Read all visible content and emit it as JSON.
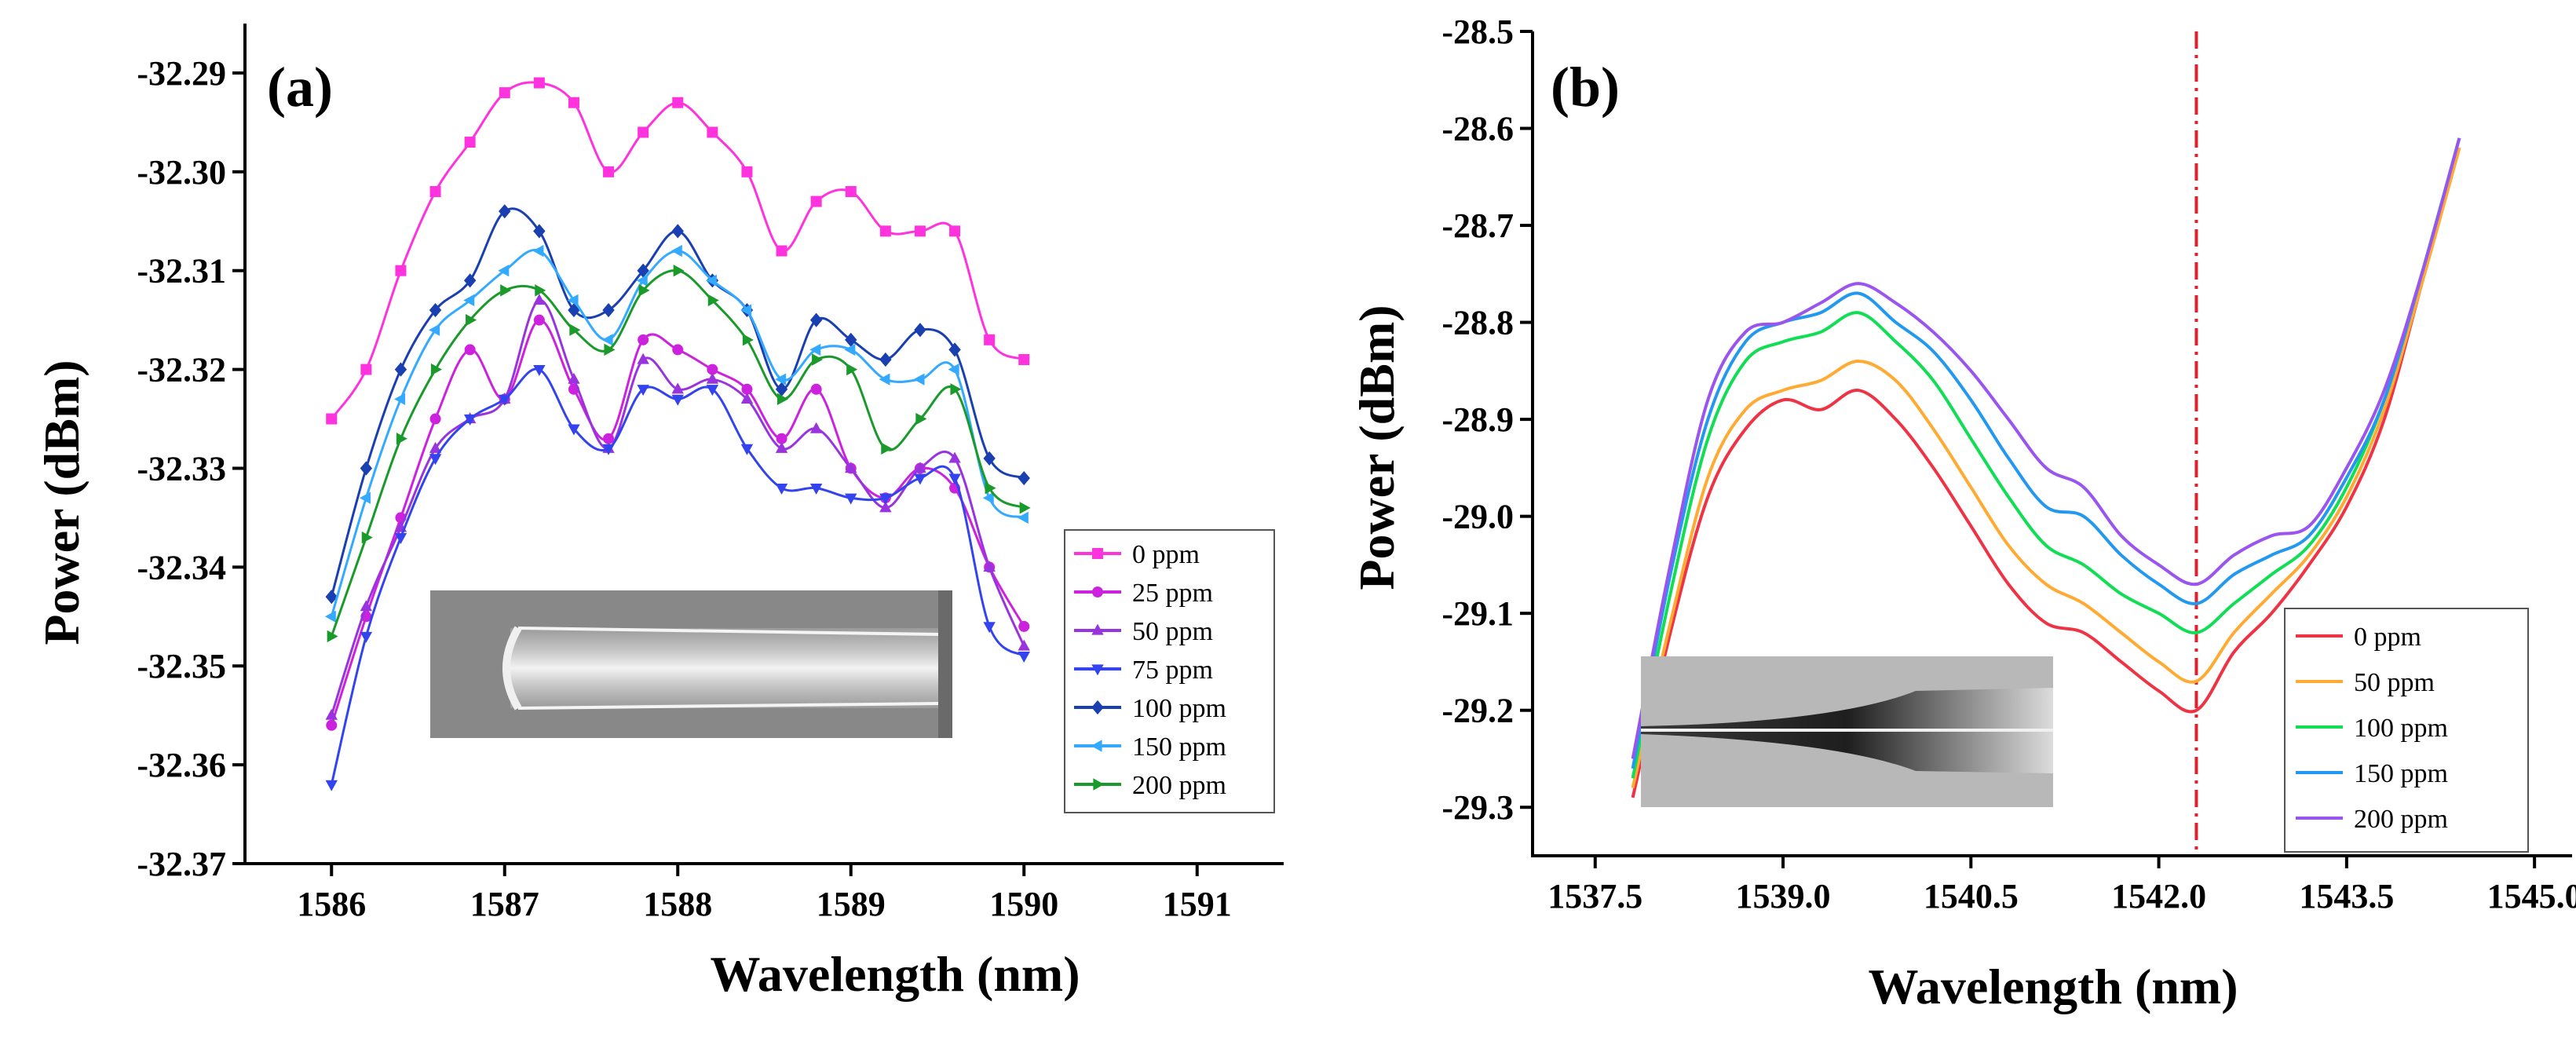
{
  "chart_data": [
    {
      "type": "line",
      "panel_label": "(a)",
      "title": "",
      "xlabel": "Wavelength (nm)",
      "ylabel": "Power (dBm)",
      "xlim": [
        1585.5,
        1591.5
      ],
      "ylim": [
        -32.37,
        -32.285
      ],
      "xticks": [
        1586,
        1587,
        1588,
        1589,
        1590,
        1591
      ],
      "yticks": [
        -32.37,
        -32.36,
        -32.35,
        -32.34,
        -32.33,
        -32.32,
        -32.31,
        -32.3,
        -32.29
      ],
      "xtick_labels": [
        "1586",
        "1587",
        "1588",
        "1589",
        "1590",
        "1591"
      ],
      "ytick_labels": [
        "-32.37",
        "-32.36",
        "-32.35",
        "-32.34",
        "-32.33",
        "-32.32",
        "-32.31",
        "-32.30",
        "-32.29"
      ],
      "legend_position": "lower-right",
      "inset": "fiber-tip-micrograph",
      "x": [
        1586.0,
        1586.2,
        1586.4,
        1586.6,
        1586.8,
        1587.0,
        1587.2,
        1587.4,
        1587.6,
        1587.8,
        1588.0,
        1588.2,
        1588.4,
        1588.6,
        1588.8,
        1589.0,
        1589.2,
        1589.4,
        1589.6,
        1589.8,
        1590.0
      ],
      "series": [
        {
          "name": "0 ppm",
          "color": "#ff33dd",
          "marker": "square",
          "values": [
            -32.325,
            -32.32,
            -32.31,
            -32.302,
            -32.297,
            -32.292,
            -32.291,
            -32.293,
            -32.3,
            -32.296,
            -32.293,
            -32.296,
            -32.3,
            -32.308,
            -32.303,
            -32.302,
            -32.306,
            -32.306,
            -32.306,
            -32.317,
            -32.319
          ]
        },
        {
          "name": "25 ppm",
          "color": "#cc22dd",
          "marker": "circle",
          "values": [
            -32.356,
            -32.345,
            -32.335,
            -32.325,
            -32.318,
            -32.323,
            -32.315,
            -32.322,
            -32.327,
            -32.317,
            -32.318,
            -32.32,
            -32.322,
            -32.327,
            -32.322,
            -32.33,
            -32.333,
            -32.33,
            -32.332,
            -32.34,
            -32.346
          ]
        },
        {
          "name": "50 ppm",
          "color": "#9933dd",
          "marker": "triangle-up",
          "values": [
            -32.355,
            -32.344,
            -32.336,
            -32.328,
            -32.325,
            -32.323,
            -32.313,
            -32.321,
            -32.328,
            -32.319,
            -32.322,
            -32.321,
            -32.323,
            -32.328,
            -32.326,
            -32.33,
            -32.334,
            -32.33,
            -32.329,
            -32.34,
            -32.348
          ]
        },
        {
          "name": "75 ppm",
          "color": "#3344ee",
          "marker": "triangle-down",
          "values": [
            -32.362,
            -32.347,
            -32.337,
            -32.329,
            -32.325,
            -32.323,
            -32.32,
            -32.326,
            -32.328,
            -32.322,
            -32.323,
            -32.322,
            -32.328,
            -32.332,
            -32.332,
            -32.333,
            -32.333,
            -32.331,
            -32.331,
            -32.346,
            -32.349
          ]
        },
        {
          "name": "100 ppm",
          "color": "#1a3fb0",
          "marker": "diamond",
          "values": [
            -32.343,
            -32.33,
            -32.32,
            -32.314,
            -32.311,
            -32.304,
            -32.306,
            -32.314,
            -32.314,
            -32.31,
            -32.306,
            -32.311,
            -32.314,
            -32.322,
            -32.315,
            -32.317,
            -32.319,
            -32.316,
            -32.318,
            -32.329,
            -32.331
          ]
        },
        {
          "name": "150 ppm",
          "color": "#33aaff",
          "marker": "triangle-left",
          "values": [
            -32.345,
            -32.333,
            -32.323,
            -32.316,
            -32.313,
            -32.31,
            -32.308,
            -32.313,
            -32.317,
            -32.311,
            -32.308,
            -32.311,
            -32.314,
            -32.321,
            -32.318,
            -32.318,
            -32.321,
            -32.321,
            -32.32,
            -32.333,
            -32.335
          ]
        },
        {
          "name": "200 ppm",
          "color": "#1a9a2a",
          "marker": "triangle-right",
          "values": [
            -32.347,
            -32.337,
            -32.327,
            -32.32,
            -32.315,
            -32.312,
            -32.312,
            -32.316,
            -32.318,
            -32.312,
            -32.31,
            -32.313,
            -32.317,
            -32.323,
            -32.319,
            -32.32,
            -32.328,
            -32.325,
            -32.322,
            -32.332,
            -32.334
          ]
        }
      ]
    },
    {
      "type": "line",
      "panel_label": "(b)",
      "title": "",
      "xlabel": "Wavelength (nm)",
      "ylabel": "Power (dBm)",
      "xlim": [
        1537.0,
        1545.3
      ],
      "ylim": [
        -29.35,
        -28.5
      ],
      "xticks": [
        1537.5,
        1539.0,
        1540.5,
        1542.0,
        1543.5,
        1545.0
      ],
      "yticks": [
        -29.3,
        -29.2,
        -29.1,
        -29.0,
        -28.9,
        -28.8,
        -28.7,
        -28.6,
        -28.5
      ],
      "xtick_labels": [
        "1537.5",
        "1539.0",
        "1540.5",
        "1542.0",
        "1543.5",
        "1545.0"
      ],
      "ytick_labels": [
        "-29.3",
        "-29.2",
        "-29.1",
        "-29.0",
        "-28.9",
        "-28.8",
        "-28.7",
        "-28.6",
        "-28.5"
      ],
      "vertical_marker_x": 1542.3,
      "vertical_marker_color": "#e0202a",
      "legend_position": "lower-right",
      "inset": "tapered-fiber-micrograph",
      "x": [
        1537.8,
        1538.1,
        1538.4,
        1538.7,
        1539.0,
        1539.3,
        1539.6,
        1539.9,
        1540.2,
        1540.5,
        1540.8,
        1541.1,
        1541.4,
        1541.7,
        1542.0,
        1542.3,
        1542.6,
        1542.9,
        1543.2,
        1543.5,
        1543.8,
        1544.1,
        1544.4
      ],
      "series": [
        {
          "name": "0 ppm",
          "color": "#ee3344",
          "values": [
            -29.29,
            -29.12,
            -28.98,
            -28.91,
            -28.88,
            -28.89,
            -28.87,
            -28.9,
            -28.95,
            -29.01,
            -29.07,
            -29.11,
            -29.12,
            -29.15,
            -29.18,
            -29.2,
            -29.14,
            -29.1,
            -29.05,
            -28.99,
            -28.9,
            -28.76,
            -28.62
          ]
        },
        {
          "name": "50 ppm",
          "color": "#ffaa33",
          "values": [
            -29.28,
            -29.11,
            -28.96,
            -28.89,
            -28.87,
            -28.86,
            -28.84,
            -28.86,
            -28.91,
            -28.97,
            -29.03,
            -29.07,
            -29.09,
            -29.12,
            -29.15,
            -29.17,
            -29.12,
            -29.08,
            -29.04,
            -28.98,
            -28.89,
            -28.76,
            -28.62
          ]
        },
        {
          "name": "100 ppm",
          "color": "#11dd55",
          "values": [
            -29.27,
            -29.08,
            -28.92,
            -28.84,
            -28.82,
            -28.81,
            -28.79,
            -28.82,
            -28.86,
            -28.92,
            -28.98,
            -29.03,
            -29.05,
            -29.08,
            -29.1,
            -29.12,
            -29.09,
            -29.06,
            -29.03,
            -28.97,
            -28.88,
            -28.75,
            -28.61
          ]
        },
        {
          "name": "150 ppm",
          "color": "#2299ee",
          "values": [
            -29.26,
            -29.06,
            -28.9,
            -28.82,
            -28.8,
            -28.79,
            -28.77,
            -28.8,
            -28.83,
            -28.88,
            -28.94,
            -28.99,
            -29.0,
            -29.04,
            -29.07,
            -29.09,
            -29.06,
            -29.04,
            -29.02,
            -28.96,
            -28.88,
            -28.75,
            -28.61
          ]
        },
        {
          "name": "200 ppm",
          "color": "#9955ee",
          "values": [
            -29.25,
            -29.05,
            -28.88,
            -28.81,
            -28.8,
            -28.78,
            -28.76,
            -28.78,
            -28.81,
            -28.85,
            -28.9,
            -28.95,
            -28.97,
            -29.02,
            -29.05,
            -29.07,
            -29.04,
            -29.02,
            -29.01,
            -28.95,
            -28.87,
            -28.75,
            -28.61
          ]
        }
      ]
    }
  ]
}
